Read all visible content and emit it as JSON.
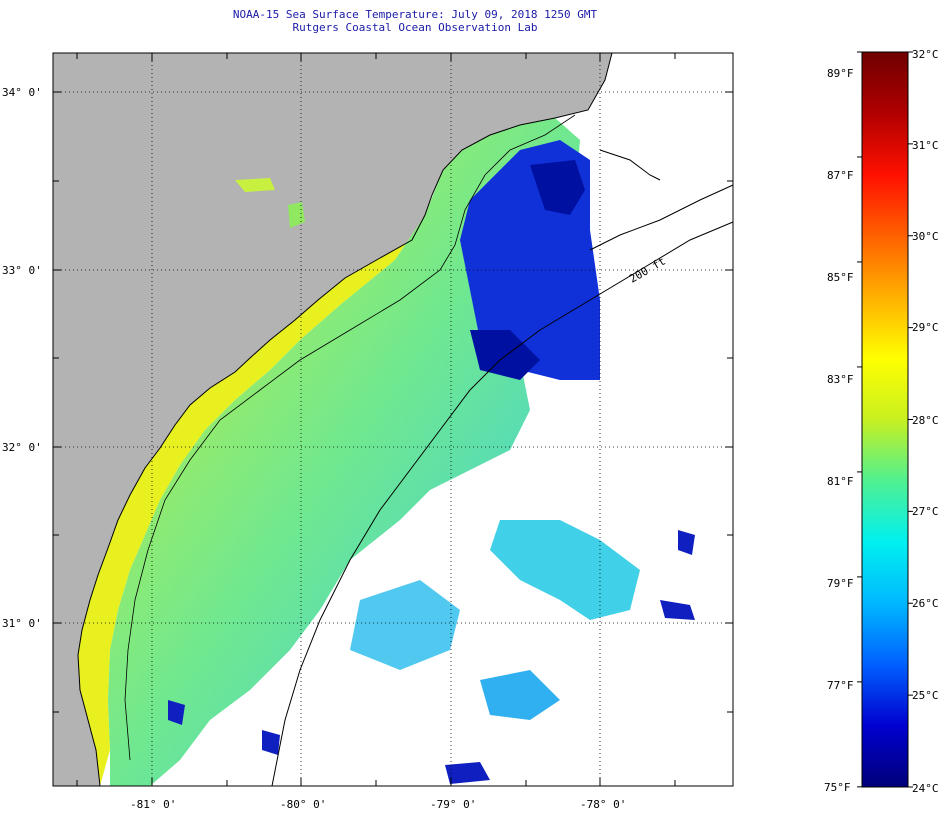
{
  "title": {
    "line1": "NOAA-15 Sea Surface Temperature:  July 09, 2018 1250 GMT",
    "line2": "Rutgers Coastal Ocean Observation Lab"
  },
  "map": {
    "lon_labels": [
      "-81° 0'",
      "-80° 0'",
      "-79° 0'",
      "-78° 0'"
    ],
    "lat_labels": [
      "34° 0'",
      "33° 0'",
      "32° 0'",
      "31° 0'"
    ],
    "isobath_label": "200 ft",
    "colors": {
      "land": "#b3b3b3",
      "cloud": "#ffffff",
      "coast": "#000000",
      "grid": "#000000"
    }
  },
  "colorbar": {
    "fahrenheit_labels": [
      "89°F",
      "87°F",
      "85°F",
      "83°F",
      "81°F",
      "79°F",
      "77°F",
      "75°F"
    ],
    "celsius_labels": [
      "32°C",
      "31°C",
      "30°C",
      "29°C",
      "28°C",
      "27°C",
      "26°C",
      "25°C",
      "24°C"
    ],
    "range_celsius": [
      24,
      32
    ],
    "gradient_stops": [
      "#00007a",
      "#0000d0",
      "#0060ff",
      "#00b8ff",
      "#00f0f0",
      "#50f090",
      "#c8f020",
      "#ffff00",
      "#ffb000",
      "#ff6000",
      "#ff1000",
      "#b00000",
      "#700000"
    ]
  }
}
